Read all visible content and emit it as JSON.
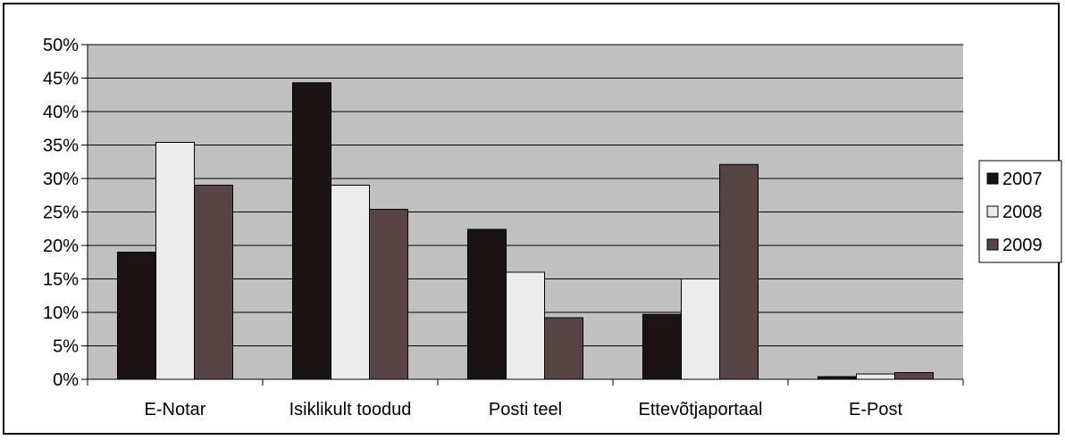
{
  "chart_data": {
    "type": "bar",
    "categories": [
      "E-Notar",
      "Isiklikult toodud",
      "Posti teel",
      "Ettevõtjaportaal",
      "E-Post"
    ],
    "series": [
      {
        "name": "2007",
        "values": [
          0.19,
          0.443,
          0.224,
          0.097,
          0.004
        ],
        "color": "#1c1314"
      },
      {
        "name": "2008",
        "values": [
          0.354,
          0.29,
          0.16,
          0.15,
          0.008
        ],
        "color": "#ececec"
      },
      {
        "name": "2009",
        "values": [
          0.29,
          0.254,
          0.092,
          0.321,
          0.01
        ],
        "color": "#574545"
      }
    ],
    "ylim": [
      0,
      0.5
    ],
    "yticks": [
      0,
      0.05,
      0.1,
      0.15,
      0.2,
      0.25,
      0.3,
      0.35,
      0.4,
      0.45,
      0.5
    ],
    "ytick_labels": [
      "0%",
      "5%",
      "10%",
      "15%",
      "20%",
      "25%",
      "30%",
      "35%",
      "40%",
      "45%",
      "50%"
    ],
    "grid": true,
    "legend_position": "right",
    "plot_background": "#c0c0c0",
    "title": "",
    "xlabel": "",
    "ylabel": ""
  }
}
